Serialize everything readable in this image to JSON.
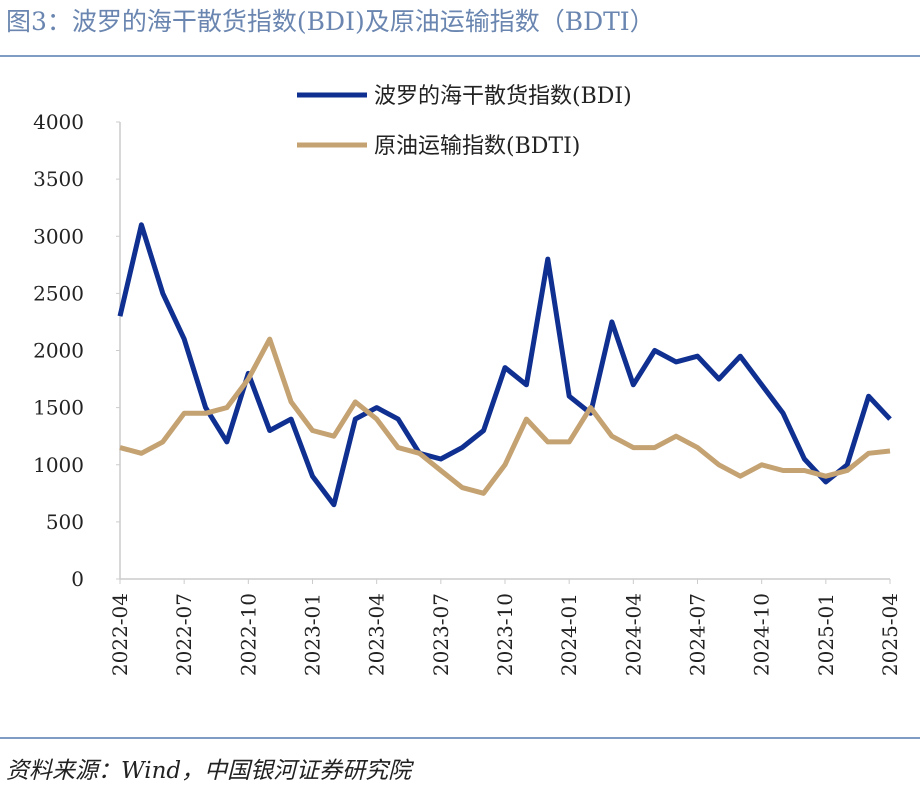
{
  "chart_data": {
    "type": "line",
    "title": "图3：波罗的海干散货指数(BDI)及原油运输指数（BDTI）",
    "source": "资料来源：Wind，中国银河证券研究院",
    "x": [
      "2022-04",
      "2022-05",
      "2022-06",
      "2022-07",
      "2022-08",
      "2022-09",
      "2022-10",
      "2022-11",
      "2022-12",
      "2023-01",
      "2023-02",
      "2023-03",
      "2023-04",
      "2023-05",
      "2023-06",
      "2023-07",
      "2023-08",
      "2023-09",
      "2023-10",
      "2023-11",
      "2023-12",
      "2024-01",
      "2024-02",
      "2024-03",
      "2024-04",
      "2024-05",
      "2024-06",
      "2024-07",
      "2024-08",
      "2024-09",
      "2024-10",
      "2024-11",
      "2024-12",
      "2025-01",
      "2025-02",
      "2025-03",
      "2025-04"
    ],
    "xticks": [
      "2022-04",
      "2022-07",
      "2022-10",
      "2023-01",
      "2023-04",
      "2023-07",
      "2023-10",
      "2024-01",
      "2024-04",
      "2024-07",
      "2024-10",
      "2025-01",
      "2025-04"
    ],
    "series": [
      {
        "name": "波罗的海干散货指数(BDI)",
        "color": "#0f2f91",
        "values": [
          2300,
          3100,
          2500,
          2100,
          1500,
          1200,
          1800,
          1300,
          1400,
          900,
          650,
          1400,
          1500,
          1400,
          1100,
          1050,
          1150,
          1300,
          1850,
          1700,
          2800,
          1600,
          1450,
          2250,
          1700,
          2000,
          1900,
          1950,
          1750,
          1950,
          1700,
          1450,
          1050,
          850,
          1000,
          1600,
          1400
        ]
      },
      {
        "name": "原油运输指数(BDTI)",
        "color": "#c4a272",
        "values": [
          1150,
          1100,
          1200,
          1450,
          1450,
          1500,
          1750,
          2100,
          1550,
          1300,
          1250,
          1550,
          1400,
          1150,
          1100,
          950,
          800,
          750,
          1000,
          1400,
          1200,
          1200,
          1500,
          1250,
          1150,
          1150,
          1250,
          1150,
          1000,
          900,
          1000,
          950,
          950,
          900,
          950,
          1100,
          1120
        ]
      }
    ],
    "ylim": [
      0,
      4000
    ],
    "yticks": [
      0,
      500,
      1000,
      1500,
      2000,
      2500,
      3000,
      3500,
      4000
    ],
    "grid": false,
    "legend": "top"
  }
}
